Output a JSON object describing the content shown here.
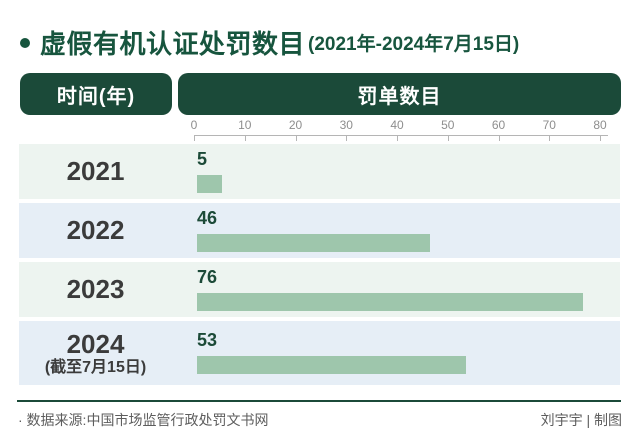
{
  "title": {
    "bullet_icon": "circle-bullet",
    "text": "虚假有机认证处罚数目",
    "subtitle": "(2021年-2024年7月15日)"
  },
  "table_header": {
    "time_col": "时间(年)",
    "value_col": "罚单数目"
  },
  "chart_data": {
    "type": "bar",
    "orientation": "horizontal",
    "title": "虚假有机认证处罚数目(2021年-2024年7月15日)",
    "categories": [
      "2021",
      "2022",
      "2023",
      "2024"
    ],
    "category_notes": [
      "",
      "",
      "",
      "(截至7月15日)"
    ],
    "values": [
      5,
      46,
      76,
      53
    ],
    "value_labels": [
      "5",
      "46",
      "76",
      "53"
    ],
    "xlim": [
      0,
      80
    ],
    "x_ticks": [
      0,
      10,
      20,
      30,
      40,
      50,
      60,
      70,
      80
    ],
    "legend": "none",
    "grid": "off"
  },
  "style": {
    "bar_color": "#9ec6ac",
    "row_colors": [
      "#edf4f0",
      "#e6eef6",
      "#edf4f0",
      "#e6eef6"
    ],
    "header_bg": "#1b4a39",
    "title_color": "#17553e",
    "axis_color": "#b5b5b5"
  },
  "footer": {
    "source": "· 数据来源:中国市场监管行政处罚文书网",
    "credit": "刘宇宇 | 制图"
  }
}
